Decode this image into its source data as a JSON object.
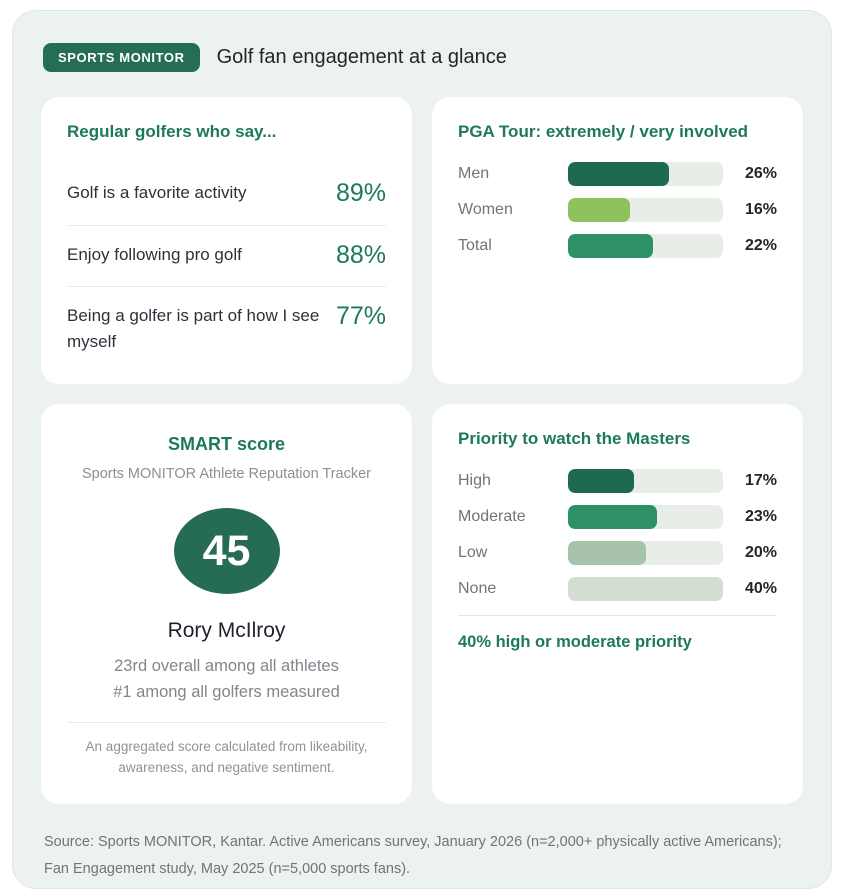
{
  "header": {
    "badge_label": "SPORTS MONITOR",
    "title": "Golf fan engagement at a glance"
  },
  "cards": {
    "regular_golfers": {
      "title": "Regular golfers who say...",
      "rows": [
        {
          "label": "Golf is a favorite activity",
          "value": "89%"
        },
        {
          "label": "Enjoy following pro golf",
          "value": "88%"
        },
        {
          "label": "Being a golfer is part of how I see myself",
          "value": "77%"
        }
      ]
    },
    "pga_tour": {
      "title": "PGA Tour: extremely / very involved",
      "scale_max": 40,
      "bars": [
        {
          "label": "Men",
          "value": 26,
          "pct": "26%",
          "color": "#1e6a50"
        },
        {
          "label": "Women",
          "value": 16,
          "pct": "16%",
          "color": "#8fc25c"
        },
        {
          "label": "Total",
          "value": 22,
          "pct": "22%",
          "color": "#2e9166"
        }
      ]
    },
    "smart_score": {
      "title": "SMART score",
      "subtitle": "Sports MONITOR Athlete Reputation Tracker",
      "score": "45",
      "athlete": "Rory McIlroy",
      "rank_line1": "23rd overall among all athletes",
      "rank_line2": "#1 among all golfers measured",
      "footnote": "An aggregated score calculated from likeability, awareness, and negative sentiment."
    },
    "masters_priority": {
      "title": "Priority to watch the Masters",
      "scale_max": 40,
      "bars": [
        {
          "label": "High",
          "value": 17,
          "pct": "17%",
          "color": "#1e6a50"
        },
        {
          "label": "Moderate",
          "value": 23,
          "pct": "23%",
          "color": "#2e9166"
        },
        {
          "label": "Low",
          "value": 20,
          "pct": "20%",
          "color": "#a7c3ab"
        },
        {
          "label": "None",
          "value": 40,
          "pct": "40%",
          "color": "#d3ddd2"
        }
      ],
      "summary": "40% high or moderate priority"
    }
  },
  "footer": {
    "source": "Source: Sports MONITOR, Kantar. Active Americans survey, January 2026 (n=2,000+ physically active Americans); Fan Engagement study, May 2025 (n=5,000 sports fans)."
  },
  "colors": {
    "accent_green": "#1e7a56",
    "badge_green": "#256e55",
    "circle_green": "#266b53",
    "bar_dark": "#1e6a50",
    "bar_medium": "#2e9166",
    "bar_lime": "#8fc25c",
    "bar_sage": "#a7c3ab",
    "bar_none": "#d3ddd2",
    "bar_track": "#e9ede7",
    "frame_bg": "#ecf2ed"
  },
  "chart_data": [
    {
      "type": "table",
      "title": "Regular golfers who say...",
      "categories": [
        "Golf is a favorite activity",
        "Enjoy following pro golf",
        "Being a golfer is part of how I see myself"
      ],
      "values": [
        89,
        88,
        77
      ],
      "unit": "%"
    },
    {
      "type": "bar",
      "title": "PGA Tour: extremely / very involved",
      "categories": [
        "Men",
        "Women",
        "Total"
      ],
      "values": [
        26,
        16,
        22
      ],
      "unit": "%",
      "orientation": "horizontal",
      "xlim": [
        0,
        40
      ],
      "grid": false
    },
    {
      "type": "bar",
      "title": "Priority to watch the Masters",
      "categories": [
        "High",
        "Moderate",
        "Low",
        "None"
      ],
      "values": [
        17,
        23,
        20,
        40
      ],
      "unit": "%",
      "orientation": "horizontal",
      "xlim": [
        0,
        40
      ],
      "grid": false,
      "annotations": [
        "40% high or moderate priority"
      ]
    },
    {
      "type": "other",
      "title": "SMART score",
      "subtitle": "Sports MONITOR Athlete Reputation Tracker",
      "score": 45,
      "athlete": "Rory McIlroy",
      "notes": [
        "23rd overall among all athletes",
        "#1 among all golfers measured"
      ]
    }
  ]
}
